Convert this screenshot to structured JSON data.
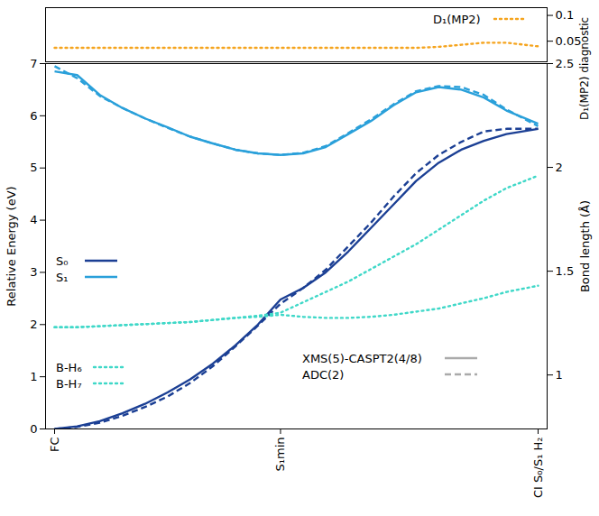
{
  "chart_data": [
    {
      "type": "line",
      "x": [
        0,
        1,
        2,
        3,
        4,
        5,
        6,
        7,
        8,
        9,
        10,
        11,
        12,
        13,
        14,
        15,
        16,
        17,
        18,
        19,
        20,
        21.4
      ],
      "xlim": [
        -0.4,
        21.8
      ],
      "y2lim": [
        0.01,
        0.115
      ],
      "y2ticks": [
        0.05,
        0.1
      ],
      "y2label": "D₁(MP2) diagnostic",
      "legend": "upper right",
      "series": [
        {
          "name": "D₁(MP2)",
          "color": "#f5a41e",
          "line_style": "dotted",
          "axis": "y2",
          "values": [
            0.037,
            0.037,
            0.037,
            0.037,
            0.037,
            0.037,
            0.037,
            0.037,
            0.037,
            0.037,
            0.037,
            0.037,
            0.037,
            0.037,
            0.037,
            0.037,
            0.037,
            0.039,
            0.043,
            0.047,
            0.047,
            0.04
          ]
        }
      ]
    },
    {
      "type": "line",
      "x": [
        0,
        1,
        2,
        3,
        4,
        5,
        6,
        7,
        8,
        9,
        10,
        11,
        12,
        13,
        14,
        15,
        16,
        17,
        18,
        19,
        20,
        21.4
      ],
      "xlim": [
        -0.4,
        21.8
      ],
      "xticks": [
        {
          "value": 0,
          "label": "FC"
        },
        {
          "value": 10,
          "label": "S₁min"
        },
        {
          "value": 21.4,
          "label": "CI S₀/S₁ H₂"
        }
      ],
      "ylim": [
        0,
        7
      ],
      "yticks": [
        0,
        1,
        2,
        3,
        4,
        5,
        6,
        7
      ],
      "ylabel": "Relative Energy (eV)",
      "y2lim": [
        0.74,
        2.5
      ],
      "y2ticks": [
        1,
        1.5,
        2,
        2.5
      ],
      "y2label": "Bond length (Å)",
      "legend": "inside",
      "methods": [
        {
          "name": "XMS(5)-CASPT2(4/8)",
          "line_style": "solid"
        },
        {
          "name": "ADC(2)",
          "line_style": "dashed"
        }
      ],
      "series": [
        {
          "name": "S₀",
          "method": "XMS(5)-CASPT2(4/8)",
          "color": "#1b3f94",
          "line_style": "solid",
          "values": [
            0,
            0.05,
            0.15,
            0.3,
            0.48,
            0.7,
            0.95,
            1.25,
            1.6,
            2.0,
            2.48,
            2.7,
            3.0,
            3.4,
            3.85,
            4.3,
            4.75,
            5.1,
            5.35,
            5.52,
            5.65,
            5.75
          ]
        },
        {
          "name": "S₀",
          "method": "ADC(2)",
          "color": "#1b3f94",
          "line_style": "dashed",
          "values": [
            0,
            0.04,
            0.12,
            0.25,
            0.42,
            0.62,
            0.88,
            1.2,
            1.58,
            1.98,
            2.4,
            2.7,
            3.05,
            3.5,
            3.95,
            4.45,
            4.9,
            5.25,
            5.5,
            5.7,
            5.75,
            5.75
          ]
        },
        {
          "name": "S₁",
          "method": "XMS(5)-CASPT2(4/8)",
          "color": "#2aa0da",
          "line_style": "solid",
          "values": [
            6.85,
            6.78,
            6.4,
            6.15,
            5.95,
            5.78,
            5.6,
            5.47,
            5.35,
            5.28,
            5.25,
            5.28,
            5.4,
            5.65,
            5.9,
            6.2,
            6.45,
            6.55,
            6.5,
            6.35,
            6.1,
            5.85
          ]
        },
        {
          "name": "S₁",
          "method": "ADC(2)",
          "color": "#2aa0da",
          "line_style": "dashed",
          "values": [
            6.95,
            6.72,
            6.38,
            6.15,
            5.95,
            5.77,
            5.6,
            5.47,
            5.35,
            5.28,
            5.25,
            5.29,
            5.42,
            5.67,
            5.93,
            6.22,
            6.47,
            6.57,
            6.55,
            6.4,
            6.12,
            5.8
          ]
        },
        {
          "name": "B-H₆",
          "color": "#3fd8c8",
          "line_style": "dotted",
          "axis": "y2",
          "values": [
            1.23,
            1.23,
            1.235,
            1.24,
            1.245,
            1.25,
            1.255,
            1.265,
            1.275,
            1.285,
            1.3,
            1.35,
            1.4,
            1.45,
            1.51,
            1.57,
            1.63,
            1.7,
            1.77,
            1.84,
            1.9,
            1.96
          ]
        },
        {
          "name": "B-H₇",
          "color": "#3fd8c8",
          "line_style": "dotted",
          "axis": "y2",
          "values": [
            1.23,
            1.23,
            1.235,
            1.24,
            1.245,
            1.25,
            1.255,
            1.265,
            1.275,
            1.28,
            1.29,
            1.28,
            1.275,
            1.275,
            1.28,
            1.29,
            1.305,
            1.32,
            1.345,
            1.37,
            1.4,
            1.43
          ]
        }
      ]
    }
  ]
}
